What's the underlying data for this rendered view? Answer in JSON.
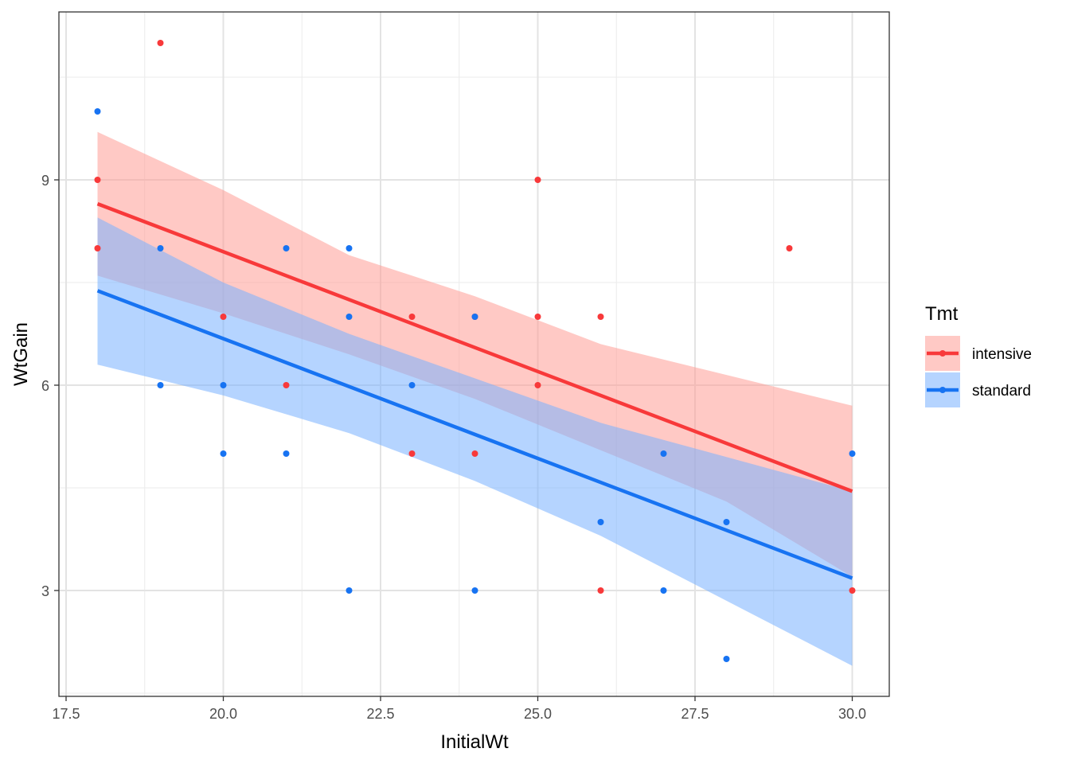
{
  "chart_data": {
    "type": "scatter",
    "xlabel": "InitialWt",
    "ylabel": "WtGain",
    "xlim": [
      17.5,
      30.0
    ],
    "ylim": [
      1.5,
      11.5
    ],
    "x_ticks": [
      17.5,
      20.0,
      22.5,
      25.0,
      27.5,
      30.0
    ],
    "x_tick_labels": [
      "17.5",
      "20.0",
      "22.5",
      "25.0",
      "27.5",
      "30.0"
    ],
    "y_ticks": [
      3,
      6,
      9
    ],
    "y_tick_labels": [
      "3",
      "6",
      "9"
    ],
    "grid": true,
    "legend": {
      "title": "Tmt",
      "position": "right"
    },
    "series": [
      {
        "name": "intensive",
        "color": "#F8766D",
        "line_color": "#F8393A",
        "ribbon_color": "#FF9C96",
        "points": [
          [
            18,
            9
          ],
          [
            18,
            8
          ],
          [
            19,
            11
          ],
          [
            20,
            7
          ],
          [
            21,
            6
          ],
          [
            23,
            7
          ],
          [
            23,
            5
          ],
          [
            24,
            7
          ],
          [
            24,
            5
          ],
          [
            25,
            9
          ],
          [
            25,
            7
          ],
          [
            25,
            6
          ],
          [
            26,
            7
          ],
          [
            26,
            3
          ],
          [
            29,
            8
          ],
          [
            30,
            3
          ]
        ],
        "fit": {
          "x": [
            18,
            30
          ],
          "y": [
            8.65,
            4.45
          ]
        },
        "ribbon": {
          "x": [
            18,
            20,
            22,
            24,
            26,
            28,
            30
          ],
          "lower": [
            7.6,
            7.05,
            6.45,
            5.8,
            5.05,
            4.3,
            3.2
          ],
          "upper": [
            9.7,
            8.85,
            7.9,
            7.3,
            6.6,
            6.15,
            5.7
          ]
        }
      },
      {
        "name": "standard",
        "color": "#1773F2",
        "line_color": "#1773F2",
        "ribbon_color": "#78B0FF",
        "points": [
          [
            18,
            10
          ],
          [
            19,
            8
          ],
          [
            19,
            6
          ],
          [
            20,
            6
          ],
          [
            20,
            5
          ],
          [
            21,
            8
          ],
          [
            21,
            5
          ],
          [
            22,
            8
          ],
          [
            22,
            7
          ],
          [
            22,
            3
          ],
          [
            23,
            6
          ],
          [
            24,
            7
          ],
          [
            24,
            3
          ],
          [
            26,
            4
          ],
          [
            27,
            5
          ],
          [
            27,
            3
          ],
          [
            28,
            4
          ],
          [
            28,
            2
          ],
          [
            30,
            5
          ]
        ],
        "fit": {
          "x": [
            18,
            30
          ],
          "y": [
            7.38,
            3.18
          ]
        },
        "ribbon": {
          "x": [
            18,
            20,
            22,
            24,
            26,
            28,
            30
          ],
          "lower": [
            6.3,
            5.85,
            5.3,
            4.6,
            3.8,
            2.85,
            1.9
          ],
          "upper": [
            8.45,
            7.5,
            6.75,
            6.1,
            5.45,
            4.95,
            4.45
          ]
        }
      }
    ]
  }
}
